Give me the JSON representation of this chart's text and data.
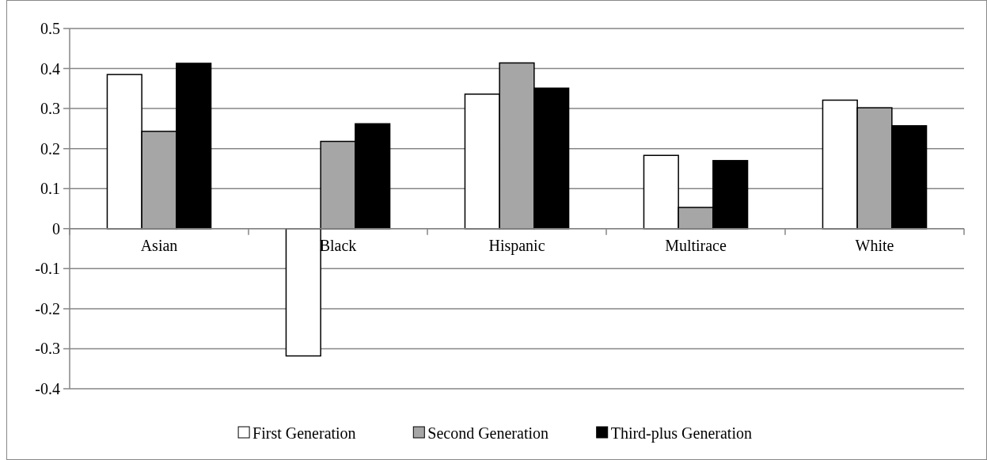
{
  "chart_data": {
    "type": "bar",
    "categories": [
      "Asian",
      "Black",
      "Hispanic",
      "Multirace",
      "White"
    ],
    "series": [
      {
        "name": "First Generation",
        "color": "#ffffff",
        "values": [
          0.385,
          -0.318,
          0.336,
          0.183,
          0.321
        ]
      },
      {
        "name": "Second Generation",
        "color": "#a6a6a6",
        "values": [
          0.243,
          0.218,
          0.414,
          0.053,
          0.302
        ]
      },
      {
        "name": "Third-plus Generation",
        "color": "#000000",
        "values": [
          0.413,
          0.262,
          0.351,
          0.17,
          0.257
        ]
      }
    ],
    "ylim": [
      -0.4,
      0.5
    ],
    "yticks": [
      {
        "value": -0.4,
        "label": "-0.4"
      },
      {
        "value": -0.3,
        "label": "-0.3"
      },
      {
        "value": -0.2,
        "label": "-0.2"
      },
      {
        "value": -0.1,
        "label": "-0.1"
      },
      0,
      0.1,
      0.2,
      0.3,
      0.4,
      0.5
    ],
    "grid": "y",
    "legend": "bottom"
  }
}
